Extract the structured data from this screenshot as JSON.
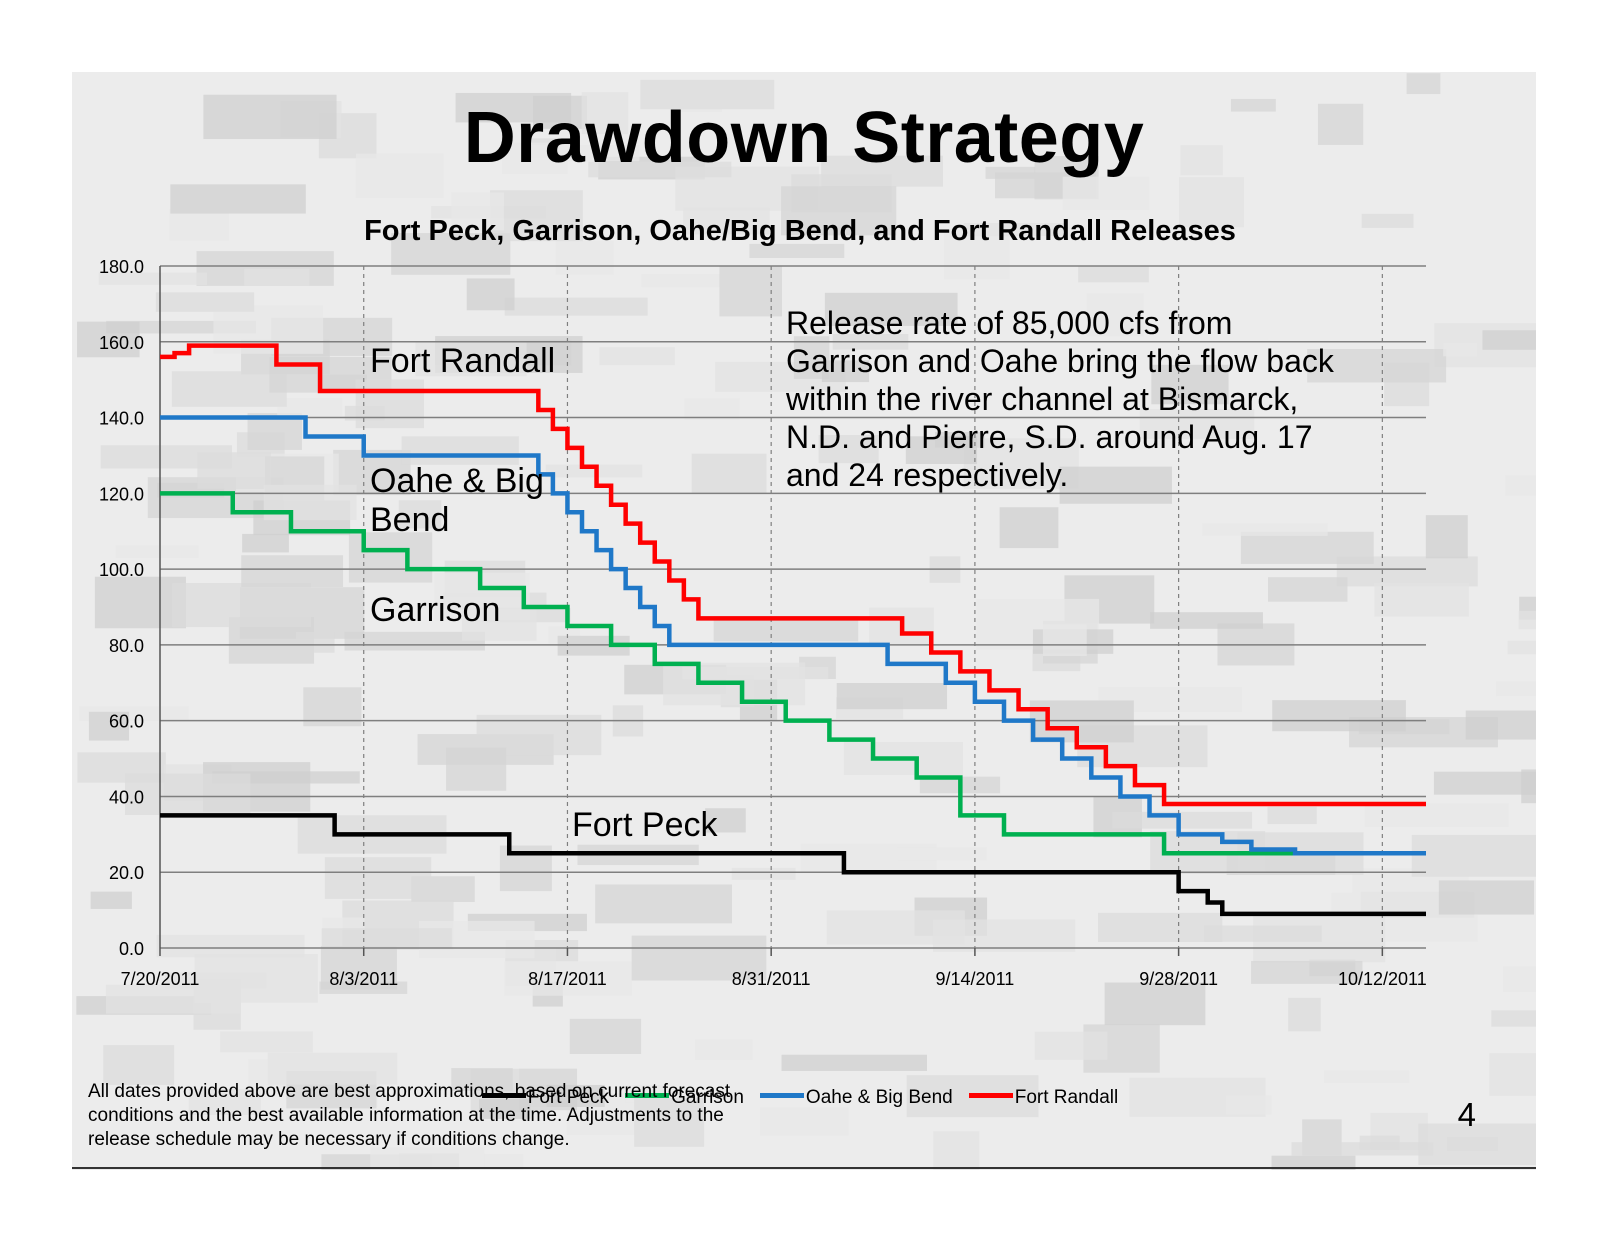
{
  "title": "Drawdown Strategy",
  "footnote": "All dates provided above are best approximations, based on current forecast conditions and the best available information at the time. Adjustments to the release schedule may be necessary if conditions change.",
  "page_number": "4",
  "colors": {
    "fort_peck": "#000000",
    "garrison": "#00b050",
    "oahe": "#1f78c8",
    "fort_randall": "#ff0000",
    "grid": "#7f7f7f"
  },
  "chart_data": {
    "type": "line",
    "step": true,
    "title": "Fort Peck, Garrison, Oahe/Big Bend, and Fort Randall Releases",
    "xlabel": "",
    "ylabel": "",
    "ylim": [
      0,
      180
    ],
    "yticks": [
      "0.0",
      "20.0",
      "40.0",
      "60.0",
      "80.0",
      "100.0",
      "120.0",
      "140.0",
      "160.0",
      "180.0"
    ],
    "xticks": [
      "7/20/2011",
      "8/3/2011",
      "8/17/2011",
      "8/31/2011",
      "9/14/2011",
      "9/28/2011",
      "10/12/2011"
    ],
    "xlim": [
      "7/20/2011",
      "10/15/2011"
    ],
    "grid": true,
    "legend_position": "bottom",
    "series": [
      {
        "name": "Fort Peck",
        "color": "#000000",
        "points": [
          [
            "7/20/2011",
            35
          ],
          [
            "8/1/2011",
            30
          ],
          [
            "8/13/2011",
            25
          ],
          [
            "9/5/2011",
            20
          ],
          [
            "9/28/2011",
            15
          ],
          [
            "9/30/2011",
            12
          ],
          [
            "10/1/2011",
            9
          ],
          [
            "10/15/2011",
            9
          ]
        ]
      },
      {
        "name": "Garrison",
        "color": "#00b050",
        "points": [
          [
            "7/20/2011",
            120
          ],
          [
            "7/25/2011",
            115
          ],
          [
            "7/29/2011",
            110
          ],
          [
            "8/3/2011",
            105
          ],
          [
            "8/6/2011",
            100
          ],
          [
            "8/11/2011",
            95
          ],
          [
            "8/14/2011",
            90
          ],
          [
            "8/17/2011",
            85
          ],
          [
            "8/20/2011",
            80
          ],
          [
            "8/23/2011",
            75
          ],
          [
            "8/26/2011",
            70
          ],
          [
            "8/29/2011",
            65
          ],
          [
            "9/1/2011",
            60
          ],
          [
            "9/4/2011",
            55
          ],
          [
            "9/7/2011",
            50
          ],
          [
            "9/10/2011",
            45
          ],
          [
            "9/13/2011",
            35
          ],
          [
            "9/16/2011",
            30
          ],
          [
            "9/27/2011",
            25
          ],
          [
            "10/6/2011",
            25
          ]
        ]
      },
      {
        "name": "Oahe & Big Bend",
        "color": "#1f78c8",
        "points": [
          [
            "7/20/2011",
            140
          ],
          [
            "7/30/2011",
            135
          ],
          [
            "8/3/2011",
            130
          ],
          [
            "8/15/2011",
            125
          ],
          [
            "8/16/2011",
            120
          ],
          [
            "8/17/2011",
            115
          ],
          [
            "8/18/2011",
            110
          ],
          [
            "8/19/2011",
            105
          ],
          [
            "8/20/2011",
            100
          ],
          [
            "8/21/2011",
            95
          ],
          [
            "8/22/2011",
            90
          ],
          [
            "8/23/2011",
            85
          ],
          [
            "8/24/2011",
            80
          ],
          [
            "9/8/2011",
            75
          ],
          [
            "9/12/2011",
            70
          ],
          [
            "9/14/2011",
            65
          ],
          [
            "9/16/2011",
            60
          ],
          [
            "9/18/2011",
            55
          ],
          [
            "9/20/2011",
            50
          ],
          [
            "9/22/2011",
            45
          ],
          [
            "9/24/2011",
            40
          ],
          [
            "9/26/2011",
            35
          ],
          [
            "9/28/2011",
            30
          ],
          [
            "10/1/2011",
            28
          ],
          [
            "10/3/2011",
            26
          ],
          [
            "10/6/2011",
            25
          ],
          [
            "10/15/2011",
            25
          ]
        ]
      },
      {
        "name": "Fort Randall",
        "color": "#ff0000",
        "points": [
          [
            "7/20/2011",
            156
          ],
          [
            "7/21/2011",
            157
          ],
          [
            "7/22/2011",
            159
          ],
          [
            "7/28/2011",
            154
          ],
          [
            "7/31/2011",
            147
          ],
          [
            "8/15/2011",
            142
          ],
          [
            "8/16/2011",
            137
          ],
          [
            "8/17/2011",
            132
          ],
          [
            "8/18/2011",
            127
          ],
          [
            "8/19/2011",
            122
          ],
          [
            "8/20/2011",
            117
          ],
          [
            "8/21/2011",
            112
          ],
          [
            "8/22/2011",
            107
          ],
          [
            "8/23/2011",
            102
          ],
          [
            "8/24/2011",
            97
          ],
          [
            "8/25/2011",
            92
          ],
          [
            "8/26/2011",
            87
          ],
          [
            "9/9/2011",
            83
          ],
          [
            "9/11/2011",
            78
          ],
          [
            "9/13/2011",
            73
          ],
          [
            "9/15/2011",
            68
          ],
          [
            "9/17/2011",
            63
          ],
          [
            "9/19/2011",
            58
          ],
          [
            "9/21/2011",
            53
          ],
          [
            "9/23/2011",
            48
          ],
          [
            "9/25/2011",
            43
          ],
          [
            "9/27/2011",
            38
          ],
          [
            "10/15/2011",
            38
          ]
        ]
      }
    ],
    "annotations": {
      "fort_randall": "Fort Randall",
      "oahe": "Oahe & Big Bend",
      "garrison": "Garrison",
      "fort_peck": "Fort Peck",
      "release_note": "Release rate of 85,000 cfs from Garrison and Oahe bring the flow back within the river channel at Bismarck, N.D. and Pierre, S.D. around Aug. 17 and 24 respectively."
    }
  }
}
